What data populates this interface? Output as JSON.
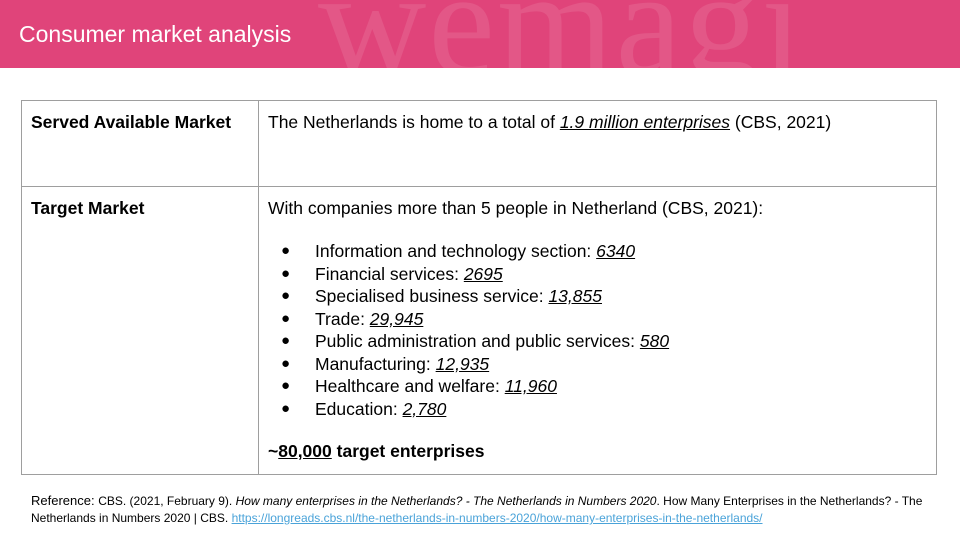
{
  "header": {
    "title": "Consumer market analysis",
    "watermark": "wemagi",
    "bg_color": "#e0447a"
  },
  "table": {
    "sam": {
      "label": "Served Available Market",
      "text_before": "The Netherlands is home to a total of ",
      "highlight": "1.9 million enterprises",
      "text_after": " (CBS, 2021)"
    },
    "target": {
      "label": "Target Market",
      "intro": "With companies more than 5 people in Netherland (CBS, 2021):",
      "bullet_char": "●",
      "items": [
        {
          "label": "Information and technology section: ",
          "value": "6340"
        },
        {
          "label": "Financial services: ",
          "value": "2695"
        },
        {
          "label": "Specialised business service: ",
          "value": "13,855"
        },
        {
          "label": "Trade: ",
          "value": "29,945"
        },
        {
          "label": "Public administration and public services: ",
          "value": "580"
        },
        {
          "label": "Manufacturing: ",
          "value": "12,935"
        },
        {
          "label": "Healthcare and welfare: ",
          "value": "11,960"
        },
        {
          "label": "Education: ",
          "value": "2,780"
        }
      ],
      "total_prefix": "~",
      "total_value": "80,000",
      "total_suffix": " target enterprises"
    }
  },
  "reference": {
    "label": "Reference: ",
    "text1": "CBS. (2021, February 9). ",
    "italic": "How many enterprises in the Netherlands? - The Netherlands in Numbers 2020",
    "text2": ". How Many Enterprises in the Netherlands? - The Netherlands in Numbers 2020 | CBS. ",
    "link": "https://longreads.cbs.nl/the-netherlands-in-numbers-2020/how-many-enterprises-in-the-netherlands/",
    "link_color": "#4aa3d9"
  }
}
